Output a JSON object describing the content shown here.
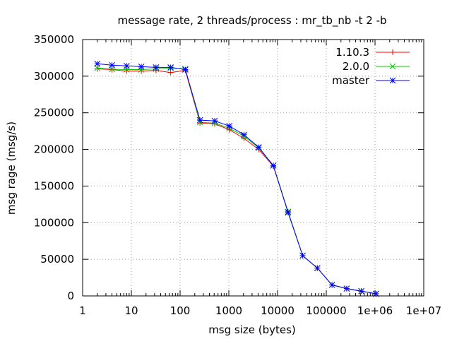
{
  "chart_data": {
    "type": "line",
    "title": "message rate, 2 threads/process : mr_tb_nb -t 2 -b",
    "xlabel": "msg size (bytes)",
    "ylabel": "msg rage (msg/s)",
    "xscale": "log",
    "xlim": [
      1,
      10000000
    ],
    "ylim": [
      0,
      350000
    ],
    "grid": true,
    "legend_position": "top-right",
    "x_ticks": [
      {
        "value": 1,
        "label": "1"
      },
      {
        "value": 10,
        "label": "10"
      },
      {
        "value": 100,
        "label": "100"
      },
      {
        "value": 1000,
        "label": "1000"
      },
      {
        "value": 10000,
        "label": "10000"
      },
      {
        "value": 100000,
        "label": "100000"
      },
      {
        "value": 1000000,
        "label": "1e+06"
      },
      {
        "value": 10000000,
        "label": "1e+07"
      }
    ],
    "y_ticks": [
      {
        "value": 0,
        "label": "0"
      },
      {
        "value": 50000,
        "label": "50000"
      },
      {
        "value": 100000,
        "label": "100000"
      },
      {
        "value": 150000,
        "label": "150000"
      },
      {
        "value": 200000,
        "label": "200000"
      },
      {
        "value": 250000,
        "label": "250000"
      },
      {
        "value": 300000,
        "label": "300000"
      },
      {
        "value": 350000,
        "label": "350000"
      }
    ],
    "series": [
      {
        "name": "1.10.3",
        "color": "#ff0000",
        "marker": "plus",
        "points": [
          [
            2,
            310000
          ],
          [
            4,
            309000
          ],
          [
            8,
            307000
          ],
          [
            16,
            307000
          ],
          [
            32,
            308000
          ],
          [
            64,
            305000
          ],
          [
            128,
            308000
          ],
          [
            256,
            236000
          ],
          [
            512,
            235000
          ],
          [
            1024,
            227000
          ],
          [
            2048,
            215000
          ],
          [
            4096,
            200000
          ],
          [
            8192,
            177000
          ],
          [
            16384,
            115000
          ],
          [
            32768,
            55000
          ],
          [
            65536,
            38000
          ],
          [
            131072,
            15000
          ],
          [
            262144,
            10000
          ],
          [
            524288,
            6500
          ],
          [
            1048576,
            3000
          ]
        ]
      },
      {
        "name": "2.0.0",
        "color": "#00cc00",
        "marker": "x",
        "points": [
          [
            2,
            311000
          ],
          [
            4,
            309500
          ],
          [
            8,
            309000
          ],
          [
            16,
            309000
          ],
          [
            32,
            310000
          ],
          [
            64,
            311000
          ],
          [
            128,
            310000
          ],
          [
            256,
            237000
          ],
          [
            512,
            236000
          ],
          [
            1024,
            229000
          ],
          [
            2048,
            218000
          ],
          [
            4096,
            202000
          ],
          [
            8192,
            178000
          ],
          [
            16384,
            115000
          ],
          [
            32768,
            55000
          ],
          [
            65536,
            38000
          ],
          [
            131072,
            15000
          ],
          [
            262144,
            10000
          ],
          [
            524288,
            6500
          ],
          [
            1048576,
            3000
          ]
        ]
      },
      {
        "name": "master",
        "color": "#0000ff",
        "marker": "star",
        "points": [
          [
            2,
            317000
          ],
          [
            4,
            315000
          ],
          [
            8,
            314000
          ],
          [
            16,
            313000
          ],
          [
            32,
            312000
          ],
          [
            64,
            312000
          ],
          [
            128,
            309000
          ],
          [
            256,
            240000
          ],
          [
            512,
            239000
          ],
          [
            1024,
            232000
          ],
          [
            2048,
            220000
          ],
          [
            4096,
            203000
          ],
          [
            8192,
            178000
          ],
          [
            16384,
            114000
          ],
          [
            32768,
            55000
          ],
          [
            65536,
            38000
          ],
          [
            131072,
            15000
          ],
          [
            262144,
            10000
          ],
          [
            524288,
            6500
          ],
          [
            1048576,
            3000
          ]
        ]
      }
    ]
  }
}
